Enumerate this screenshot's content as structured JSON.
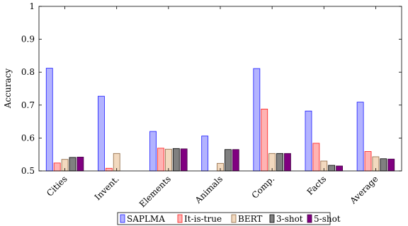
{
  "chart_data": {
    "type": "bar",
    "ylabel": "Accuracy",
    "xlabel": "",
    "ylim": [
      0.5,
      1.0
    ],
    "yticks": [
      "0.5",
      "0.6",
      "0.7",
      "0.8",
      "0.9",
      "1"
    ],
    "categories": [
      "Cities",
      "Invent.",
      "Elements",
      "Animals",
      "Comp.",
      "Facts",
      "Average"
    ],
    "series": [
      {
        "name": "SAPLMA",
        "fill": "#b3b3ff",
        "stroke": "#1a1aff",
        "values": [
          0.812,
          0.727,
          0.62,
          0.606,
          0.811,
          0.682,
          0.709
        ]
      },
      {
        "name": "It-is-true",
        "fill": "#ffb3b3",
        "stroke": "#ff1a1a",
        "values": [
          0.524,
          0.508,
          0.569,
          0.5,
          0.688,
          0.584,
          0.559
        ]
      },
      {
        "name": "BERT",
        "fill": "#f2d9bf",
        "stroke": "#8c6640",
        "values": [
          0.535,
          0.553,
          0.566,
          0.523,
          0.553,
          0.53,
          0.543
        ]
      },
      {
        "name": "3-shot",
        "fill": "#808080",
        "stroke": "#000000",
        "values": [
          0.541,
          0.5,
          0.568,
          0.565,
          0.553,
          0.517,
          0.537
        ]
      },
      {
        "name": "5-shot",
        "fill": "#800080",
        "stroke": "#400040",
        "values": [
          0.542,
          0.5,
          0.567,
          0.565,
          0.553,
          0.515,
          0.536
        ]
      }
    ],
    "legend_position": "bottom",
    "grid": false
  }
}
